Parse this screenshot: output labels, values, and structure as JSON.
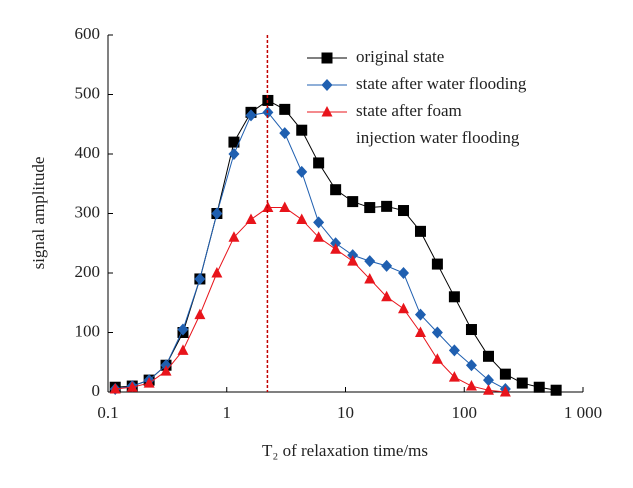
{
  "chart_data": {
    "type": "line",
    "xlabel": "T₂ of relaxation time/ms",
    "ylabel": "signal amplitude",
    "x": [
      0.115,
      0.16,
      0.222,
      0.308,
      0.428,
      0.594,
      0.826,
      1.15,
      1.6,
      2.22,
      3.08,
      4.28,
      5.94,
      8.26,
      11.5,
      16,
      22.2,
      30.8,
      42.8,
      59.4,
      82.6,
      115,
      160,
      222,
      308,
      428,
      594
    ],
    "series": [
      {
        "name": "original state",
        "color": "#000000",
        "marker": "square",
        "values": [
          8,
          10,
          20,
          45,
          100,
          190,
          300,
          420,
          470,
          490,
          475,
          440,
          385,
          340,
          320,
          310,
          312,
          305,
          270,
          215,
          160,
          105,
          60,
          30,
          15,
          8,
          3
        ]
      },
      {
        "name": "state after water flooding",
        "color": "#1f5fb0",
        "marker": "diamond",
        "values": [
          5,
          10,
          20,
          45,
          105,
          190,
          300,
          400,
          465,
          470,
          435,
          370,
          285,
          250,
          230,
          220,
          212,
          200,
          130,
          100,
          70,
          45,
          20,
          5,
          null,
          null,
          null
        ]
      },
      {
        "name": "state after foam\ninjection water flooding",
        "color": "#e8141b",
        "marker": "triangle",
        "values": [
          5,
          8,
          15,
          35,
          70,
          130,
          200,
          260,
          290,
          310,
          310,
          290,
          260,
          240,
          220,
          190,
          160,
          140,
          100,
          55,
          25,
          10,
          3,
          0,
          null,
          null,
          null
        ]
      }
    ],
    "vline": {
      "x": 2.2,
      "color": "#c00000"
    },
    "xscale": "log",
    "xlim": [
      0.1,
      1000
    ],
    "xticks": [
      0.1,
      1,
      10,
      100,
      {
        "value": 1000,
        "label": "1 000"
      }
    ],
    "ylim": [
      0,
      600
    ],
    "yticks": [
      0,
      100,
      200,
      300,
      400,
      500,
      600
    ],
    "legend": "upper right"
  }
}
